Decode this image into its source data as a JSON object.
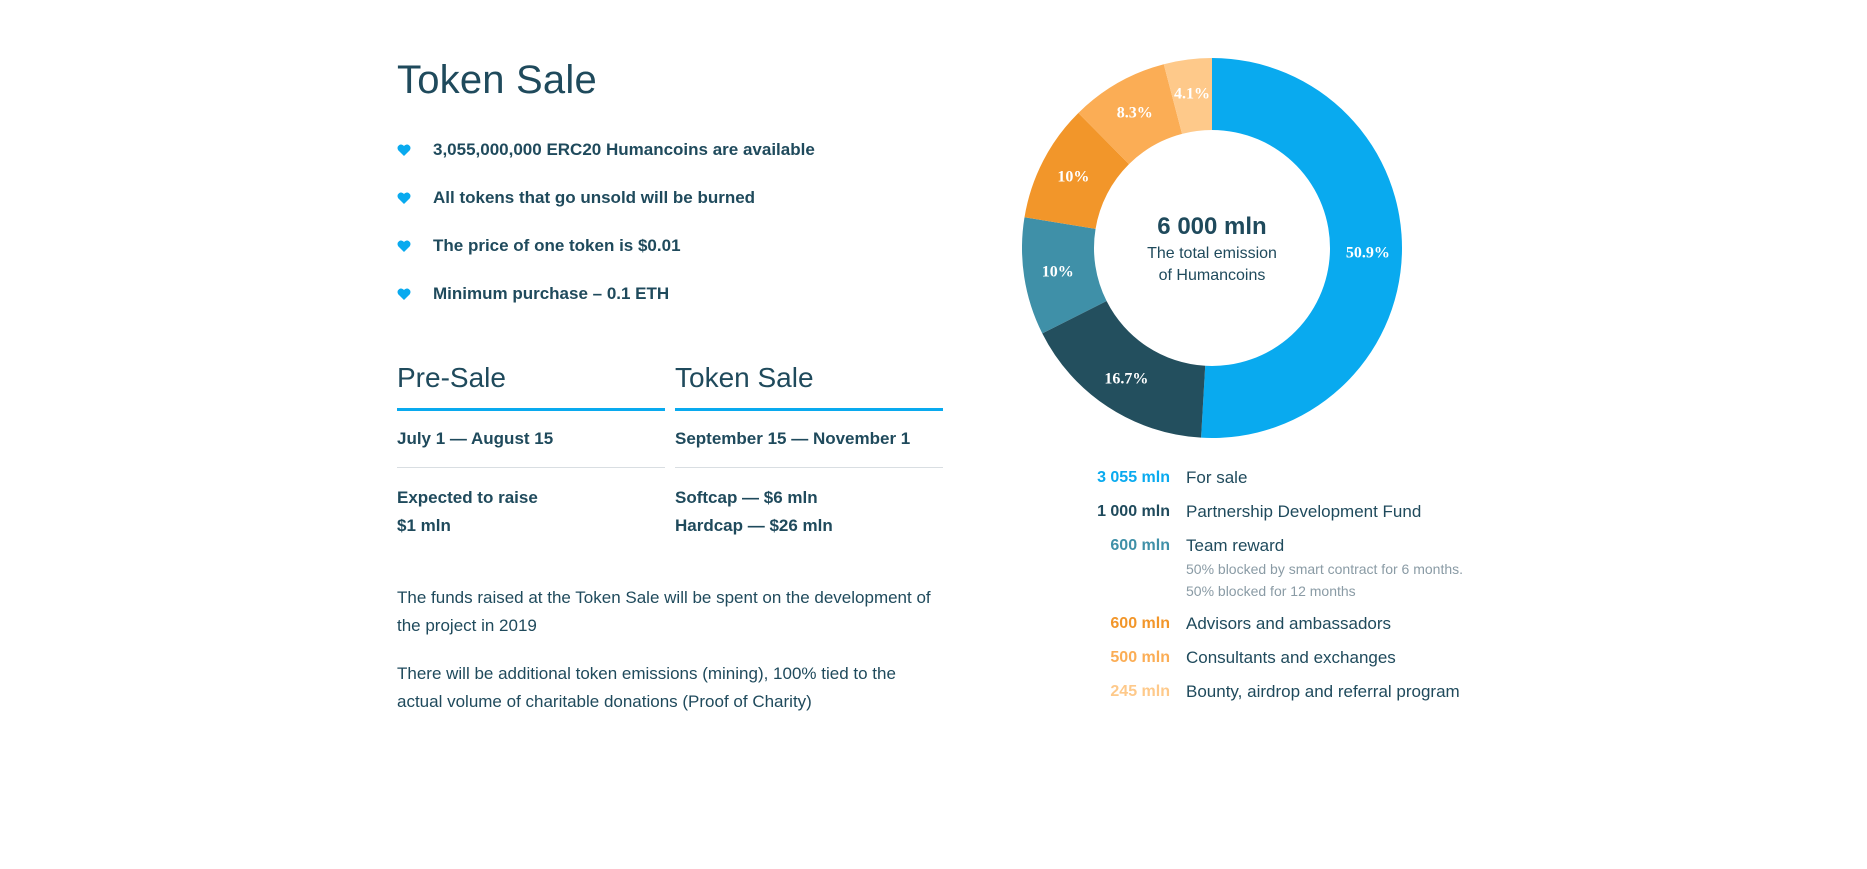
{
  "page": {
    "title": "Token Sale",
    "bullets": [
      "3,055,000,000 ERC20 Humancoins are available",
      "All tokens that go unsold will be burned",
      "The price of one token is $0.01",
      "Minimum purchase – 0.1 ETH"
    ],
    "presale": {
      "heading": "Pre-Sale",
      "dates": "July 1 — August 15",
      "line1": "Expected to raise",
      "line2": "$1 mln"
    },
    "tokensale": {
      "heading": "Token Sale",
      "dates": "September 15 — November 1",
      "line1": "Softcap — $6 mln",
      "line2": "Hardcap — $26 mln"
    },
    "para1": "The funds raised at the Token Sale will be spent on the development of the project in 2019",
    "para2": "There will be additional token emissions (mining), 100% tied to the actual volume of charitable donations (Proof of Charity)",
    "accent_color": "#09aaef"
  },
  "chart_data": {
    "type": "pie",
    "center_value": "6 000 mln",
    "center_line1": "The total emission",
    "center_line2": "of Humancoins",
    "slices": [
      {
        "label": "For sale",
        "value_text": "3 055 mln",
        "value": 3055,
        "percent_label": "50.9%",
        "color": "#09aaef"
      },
      {
        "label": "Partnership Development Fund",
        "value_text": "1 000 mln",
        "value": 1000,
        "percent_label": "16.7%",
        "color": "#234f5e"
      },
      {
        "label": "Team reward",
        "value_text": "600 mln",
        "value": 600,
        "percent_label": "10%",
        "color": "#3f90a8",
        "note1": "50% blocked by smart contract for 6 months.",
        "note2": "50% blocked for 12 months"
      },
      {
        "label": "Advisors and ambassadors",
        "value_text": "600 mln",
        "value": 600,
        "percent_label": "10%",
        "color": "#f2962a"
      },
      {
        "label": "Consultants and exchanges",
        "value_text": "500 mln",
        "value": 500,
        "percent_label": "8.3%",
        "color": "#fbad55"
      },
      {
        "label": "Bounty, airdrop and referral program",
        "value_text": "245 mln",
        "value": 245,
        "percent_label": "4.1%",
        "color": "#fec98a"
      }
    ],
    "legend_value_colors": [
      "#09aaef",
      "#1f4a5c",
      "#3f90a8",
      "#f2962a",
      "#fbad55",
      "#fec98a"
    ]
  }
}
